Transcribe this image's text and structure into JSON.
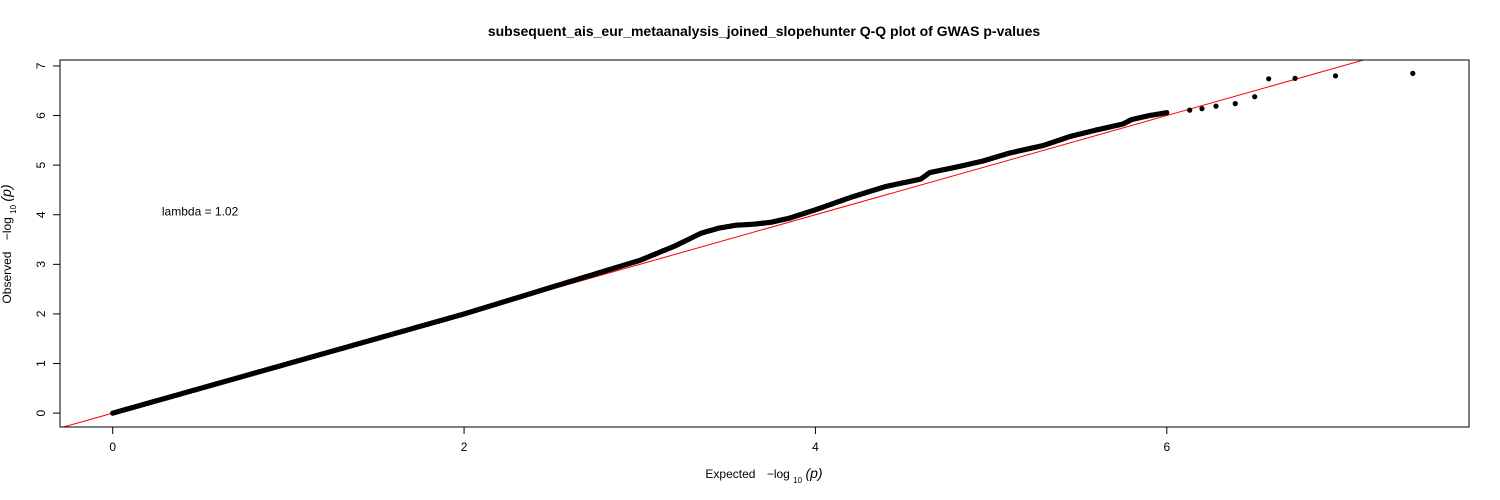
{
  "chart_data": {
    "type": "scatter",
    "title": "subsequent_ais_eur_metaanalysis_joined_slopehunter Q-Q plot of GWAS p-values",
    "xlabel_prefix": "Expected",
    "ylabel_prefix": "Observed",
    "axis_expr": "−log",
    "axis_sub": "10",
    "axis_var": "(p)",
    "xlim": [
      -0.3,
      7.72
    ],
    "ylim": [
      -0.28,
      7.12
    ],
    "x_ticks": [
      0,
      2,
      4,
      6
    ],
    "y_ticks": [
      0,
      1,
      2,
      3,
      4,
      5,
      6,
      7
    ],
    "annotation": {
      "text": "lambda = 1.02",
      "x": 0.28,
      "y": 3.98
    },
    "reference_line": {
      "slope": 1,
      "intercept": 0,
      "color": "#ff0000"
    },
    "point_color": "#000000",
    "curve": [
      [
        0,
        0
      ],
      [
        1,
        1.0
      ],
      [
        2,
        2.0
      ],
      [
        2.6,
        2.65
      ],
      [
        3.0,
        3.08
      ],
      [
        3.2,
        3.37
      ],
      [
        3.35,
        3.63
      ],
      [
        3.45,
        3.73
      ],
      [
        3.55,
        3.79
      ],
      [
        3.65,
        3.81
      ],
      [
        3.75,
        3.85
      ],
      [
        3.85,
        3.93
      ],
      [
        4.0,
        4.1
      ],
      [
        4.2,
        4.35
      ],
      [
        4.4,
        4.57
      ],
      [
        4.6,
        4.72
      ],
      [
        4.65,
        4.85
      ],
      [
        4.8,
        4.96
      ],
      [
        4.95,
        5.08
      ],
      [
        5.1,
        5.24
      ],
      [
        5.3,
        5.4
      ],
      [
        5.45,
        5.58
      ],
      [
        5.6,
        5.71
      ],
      [
        5.75,
        5.83
      ],
      [
        5.8,
        5.92
      ],
      [
        5.9,
        6.0
      ],
      [
        6.0,
        6.06
      ]
    ],
    "top_points": [
      [
        6.13,
        6.11
      ],
      [
        6.2,
        6.14
      ],
      [
        6.28,
        6.19
      ],
      [
        6.39,
        6.24
      ],
      [
        6.5,
        6.38
      ],
      [
        6.58,
        6.74
      ],
      [
        6.73,
        6.75
      ],
      [
        6.96,
        6.8
      ],
      [
        7.4,
        6.85
      ]
    ]
  }
}
